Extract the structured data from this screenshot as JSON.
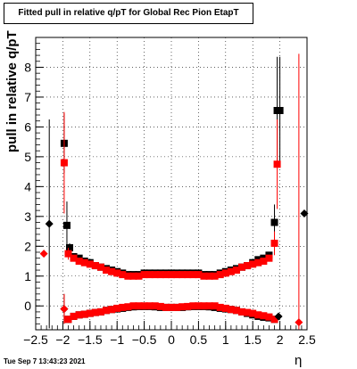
{
  "chart_data": {
    "type": "scatter",
    "title": "Fitted pull in relative q/pT for Global Rec Pion EtapT",
    "xlabel": "η",
    "ylabel": "pull in relative q/pT",
    "xlim": [
      -2.5,
      2.5
    ],
    "ylim": [
      -0.8,
      9.0
    ],
    "xticks": [
      "−2.5",
      "−2",
      "−1.5",
      "−1",
      "−0.5",
      "0",
      "0.5",
      "1",
      "1.5",
      "2",
      "2.5"
    ],
    "yticks": [
      "0",
      "1",
      "2",
      "3",
      "4",
      "5",
      "6",
      "7",
      "8"
    ],
    "grid": true,
    "series": [
      {
        "color": "#000000",
        "marker": "square",
        "x": [
          -1.975,
          -1.925,
          -1.875,
          -1.8,
          -1.7,
          -1.6,
          -1.5,
          -1.4,
          -1.3,
          -1.2,
          -1.1,
          -1.0,
          -0.9,
          -0.8,
          -0.7,
          -0.6,
          -0.5,
          -0.4,
          -0.3,
          -0.2,
          -0.1,
          0.0,
          0.1,
          0.2,
          0.3,
          0.4,
          0.5,
          0.6,
          0.7,
          0.8,
          0.9,
          1.0,
          1.1,
          1.2,
          1.3,
          1.4,
          1.5,
          1.6,
          1.7,
          1.8,
          1.9,
          1.95,
          2.0
        ],
        "values": [
          5.45,
          2.7,
          1.95,
          1.65,
          1.6,
          1.5,
          1.45,
          1.35,
          1.3,
          1.25,
          1.2,
          1.15,
          1.1,
          1.05,
          1.05,
          1.05,
          1.1,
          1.1,
          1.1,
          1.1,
          1.1,
          1.1,
          1.1,
          1.1,
          1.1,
          1.1,
          1.1,
          1.05,
          1.05,
          1.05,
          1.1,
          1.15,
          1.2,
          1.25,
          1.3,
          1.35,
          1.45,
          1.55,
          1.6,
          1.7,
          2.8,
          6.55,
          6.55
        ],
        "errors": [
          1.0,
          0.8,
          0.15,
          0.08,
          0.07,
          0.06,
          0.06,
          0.05,
          0.05,
          0.05,
          0.05,
          0.05,
          0.05,
          0.05,
          0.05,
          0.05,
          0.05,
          0.05,
          0.05,
          0.05,
          0.05,
          0.05,
          0.05,
          0.05,
          0.05,
          0.05,
          0.05,
          0.05,
          0.05,
          0.05,
          0.05,
          0.05,
          0.05,
          0.05,
          0.05,
          0.06,
          0.06,
          0.07,
          0.08,
          0.1,
          0.6,
          1.8,
          1.8
        ]
      },
      {
        "color": "#000000",
        "marker": "square",
        "x": [
          -1.9,
          -1.8,
          -1.7,
          -1.6,
          -1.5,
          -1.4,
          -1.3,
          -1.2,
          -1.1,
          -1.0,
          -0.9,
          -0.8,
          -0.7,
          -0.6,
          -0.5,
          -0.4,
          -0.3,
          -0.2,
          -0.1,
          0.0,
          0.1,
          0.2,
          0.3,
          0.4,
          0.5,
          0.6,
          0.7,
          0.8,
          0.9,
          1.0,
          1.1,
          1.2,
          1.3,
          1.4,
          1.5,
          1.6,
          1.7,
          1.8,
          1.9
        ],
        "values": [
          -0.45,
          -0.35,
          -0.3,
          -0.28,
          -0.25,
          -0.22,
          -0.2,
          -0.15,
          -0.12,
          -0.1,
          -0.08,
          -0.05,
          -0.03,
          -0.02,
          -0.02,
          -0.02,
          -0.03,
          -0.05,
          -0.05,
          -0.05,
          -0.05,
          -0.05,
          -0.03,
          -0.02,
          -0.02,
          -0.02,
          -0.03,
          -0.05,
          -0.08,
          -0.1,
          -0.12,
          -0.15,
          -0.2,
          -0.25,
          -0.3,
          -0.35,
          -0.38,
          -0.4,
          -0.45
        ],
        "errors": [
          0.1,
          0.06,
          0.05,
          0.05,
          0.05,
          0.05,
          0.05,
          0.05,
          0.05,
          0.05,
          0.05,
          0.05,
          0.05,
          0.05,
          0.05,
          0.05,
          0.05,
          0.05,
          0.05,
          0.05,
          0.05,
          0.05,
          0.05,
          0.05,
          0.05,
          0.05,
          0.05,
          0.05,
          0.05,
          0.05,
          0.05,
          0.05,
          0.05,
          0.05,
          0.05,
          0.05,
          0.05,
          0.06,
          0.1
        ]
      },
      {
        "color": "#ff0000",
        "marker": "square",
        "x": [
          -1.975,
          -1.9,
          -1.8,
          -1.7,
          -1.6,
          -1.5,
          -1.4,
          -1.3,
          -1.2,
          -1.1,
          -1.0,
          -0.9,
          -0.8,
          -0.7,
          -0.6,
          -0.5,
          -0.4,
          -0.3,
          -0.2,
          -0.1,
          0.0,
          0.1,
          0.2,
          0.3,
          0.4,
          0.5,
          0.6,
          0.7,
          0.8,
          0.9,
          1.0,
          1.1,
          1.2,
          1.3,
          1.4,
          1.5,
          1.6,
          1.7,
          1.8,
          1.9,
          1.95
        ],
        "values": [
          4.8,
          1.75,
          1.6,
          1.5,
          1.45,
          1.4,
          1.35,
          1.3,
          1.2,
          1.15,
          1.1,
          1.05,
          1.0,
          1.0,
          1.0,
          1.05,
          1.05,
          1.05,
          1.05,
          1.05,
          1.05,
          1.05,
          1.05,
          1.05,
          1.05,
          1.05,
          1.0,
          1.0,
          1.0,
          1.05,
          1.1,
          1.15,
          1.2,
          1.3,
          1.35,
          1.4,
          1.45,
          1.5,
          1.6,
          2.1,
          4.75
        ],
        "errors": [
          1.7,
          0.2,
          0.08,
          0.07,
          0.06,
          0.06,
          0.05,
          0.05,
          0.05,
          0.05,
          0.05,
          0.05,
          0.05,
          0.05,
          0.05,
          0.05,
          0.05,
          0.05,
          0.05,
          0.05,
          0.05,
          0.05,
          0.05,
          0.05,
          0.05,
          0.05,
          0.05,
          0.05,
          0.05,
          0.05,
          0.05,
          0.05,
          0.05,
          0.05,
          0.06,
          0.06,
          0.07,
          0.08,
          0.1,
          0.4,
          1.5
        ]
      },
      {
        "color": "#ff0000",
        "marker": "square",
        "x": [
          -1.9,
          -1.8,
          -1.7,
          -1.6,
          -1.5,
          -1.4,
          -1.3,
          -1.2,
          -1.1,
          -1.0,
          -0.9,
          -0.8,
          -0.7,
          -0.6,
          -0.5,
          -0.4,
          -0.3,
          -0.2,
          -0.1,
          0.0,
          0.1,
          0.2,
          0.3,
          0.4,
          0.5,
          0.6,
          0.7,
          0.8,
          0.9,
          1.0,
          1.1,
          1.2,
          1.3,
          1.4,
          1.5,
          1.6,
          1.7,
          1.8,
          1.9
        ],
        "values": [
          -0.45,
          -0.35,
          -0.3,
          -0.28,
          -0.25,
          -0.22,
          -0.2,
          -0.15,
          -0.12,
          -0.08,
          -0.05,
          -0.03,
          0.0,
          0.0,
          0.0,
          0.0,
          0.0,
          -0.02,
          -0.05,
          -0.05,
          -0.05,
          -0.03,
          -0.02,
          0.0,
          0.0,
          0.0,
          0.0,
          0.0,
          -0.05,
          -0.08,
          -0.12,
          -0.15,
          -0.2,
          -0.22,
          -0.25,
          -0.3,
          -0.33,
          -0.37,
          -0.45
        ],
        "errors": [
          0.1,
          0.06,
          0.05,
          0.05,
          0.05,
          0.05,
          0.05,
          0.05,
          0.05,
          0.05,
          0.05,
          0.05,
          0.05,
          0.05,
          0.05,
          0.05,
          0.05,
          0.05,
          0.05,
          0.05,
          0.05,
          0.05,
          0.05,
          0.05,
          0.05,
          0.05,
          0.05,
          0.05,
          0.05,
          0.05,
          0.05,
          0.05,
          0.05,
          0.05,
          0.05,
          0.05,
          0.05,
          0.06,
          0.1
        ]
      },
      {
        "color": "#000000",
        "marker": "diamond",
        "x": [
          -2.25,
          2.45,
          -1.975,
          1.975
        ],
        "values": [
          2.75,
          3.1,
          -0.1,
          -0.35
        ],
        "errors": [
          3.5,
          0,
          0.5,
          0.1
        ]
      },
      {
        "color": "#ff0000",
        "marker": "diamond",
        "x": [
          -2.35,
          2.35,
          -1.975
        ],
        "values": [
          1.75,
          -0.55,
          -0.1
        ],
        "errors": [
          0,
          9.0,
          0.5
        ]
      }
    ]
  },
  "footer": {
    "timestamp": "Tue Sep  7 13:43:23 2021"
  }
}
